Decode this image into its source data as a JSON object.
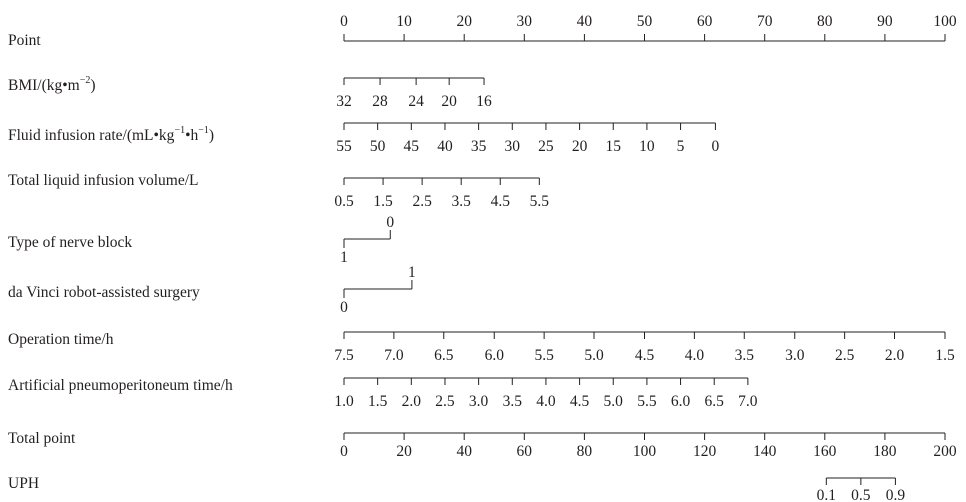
{
  "chart_data": {
    "type": "nomogram",
    "title": "",
    "point_scale": {
      "label": "Point",
      "range": [
        0,
        100
      ],
      "ticks": [
        0,
        10,
        20,
        30,
        40,
        50,
        60,
        70,
        80,
        90,
        100
      ]
    },
    "variables": [
      {
        "label": "BMI/(kg•m",
        "label_sup": "−2",
        "label_tail": ")",
        "ticks": [
          {
            "text": "32",
            "points": 0
          },
          {
            "text": "28",
            "points": 6
          },
          {
            "text": "24",
            "points": 12
          },
          {
            "text": "20",
            "points": 17.5
          },
          {
            "text": "16",
            "points": 23.3
          }
        ]
      },
      {
        "label": "Fluid infusion rate/(mL•kg",
        "label_sup": "−1",
        "label_mid": "•h",
        "label_sup2": "−1",
        "label_tail": ")",
        "ticks": [
          {
            "text": "55",
            "points": 0
          },
          {
            "text": "50",
            "points": 5.6
          },
          {
            "text": "45",
            "points": 11.2
          },
          {
            "text": "40",
            "points": 16.8
          },
          {
            "text": "35",
            "points": 22.4
          },
          {
            "text": "30",
            "points": 28.0
          },
          {
            "text": "25",
            "points": 33.6
          },
          {
            "text": "20",
            "points": 39.2
          },
          {
            "text": "15",
            "points": 44.8
          },
          {
            "text": "10",
            "points": 50.4
          },
          {
            "text": "5",
            "points": 56.0
          },
          {
            "text": "0",
            "points": 61.8
          }
        ]
      },
      {
        "label": "Total liquid infusion volume/L",
        "ticks": [
          {
            "text": "0.5",
            "points": 0
          },
          {
            "text": "1.5",
            "points": 6.5
          },
          {
            "text": "2.5",
            "points": 13
          },
          {
            "text": "3.5",
            "points": 19.5
          },
          {
            "text": "4.5",
            "points": 26
          },
          {
            "text": "5.5",
            "points": 32.5
          }
        ]
      },
      {
        "label": "Type of nerve block",
        "categorical": true,
        "ticks": [
          {
            "text": "1",
            "points": 0,
            "side": "below"
          },
          {
            "text": "0",
            "points": 7.7,
            "side": "above"
          }
        ]
      },
      {
        "label": "da Vinci robot-assisted surgery",
        "categorical": true,
        "ticks": [
          {
            "text": "0",
            "points": 0,
            "side": "below"
          },
          {
            "text": "1",
            "points": 11.3,
            "side": "above"
          }
        ]
      },
      {
        "label": "Operation time/h",
        "ticks": [
          {
            "text": "7.5",
            "points": 0
          },
          {
            "text": "7.0",
            "points": 8.3
          },
          {
            "text": "6.5",
            "points": 16.6
          },
          {
            "text": "6.0",
            "points": 25
          },
          {
            "text": "5.5",
            "points": 33.3
          },
          {
            "text": "5.0",
            "points": 41.6
          },
          {
            "text": "4.5",
            "points": 50
          },
          {
            "text": "4.0",
            "points": 58.3
          },
          {
            "text": "3.5",
            "points": 66.6
          },
          {
            "text": "3.0",
            "points": 75
          },
          {
            "text": "2.5",
            "points": 83.3
          },
          {
            "text": "2.0",
            "points": 91.6
          },
          {
            "text": "1.5",
            "points": 100
          }
        ]
      },
      {
        "label": "Artificial pneumoperitoneum time/h",
        "ticks": [
          {
            "text": "1.0",
            "points": 0
          },
          {
            "text": "1.5",
            "points": 5.6
          },
          {
            "text": "2.0",
            "points": 11.2
          },
          {
            "text": "2.5",
            "points": 16.8
          },
          {
            "text": "3.0",
            "points": 22.4
          },
          {
            "text": "3.5",
            "points": 28
          },
          {
            "text": "4.0",
            "points": 33.6
          },
          {
            "text": "4.5",
            "points": 39.2
          },
          {
            "text": "5.0",
            "points": 44.8
          },
          {
            "text": "5.5",
            "points": 50.4
          },
          {
            "text": "6.0",
            "points": 56
          },
          {
            "text": "6.5",
            "points": 61.6
          },
          {
            "text": "7.0",
            "points": 67.2
          }
        ]
      }
    ],
    "total_point": {
      "label": "Total point",
      "range": [
        0,
        200
      ],
      "ticks": [
        0,
        20,
        40,
        60,
        80,
        100,
        120,
        140,
        160,
        180,
        200
      ]
    },
    "outcome": {
      "label": "UPH",
      "ticks": [
        {
          "text": "0.1",
          "total": 160.5
        },
        {
          "text": "0.5",
          "total": 172
        },
        {
          "text": "0.9",
          "total": 183.5
        }
      ]
    }
  }
}
